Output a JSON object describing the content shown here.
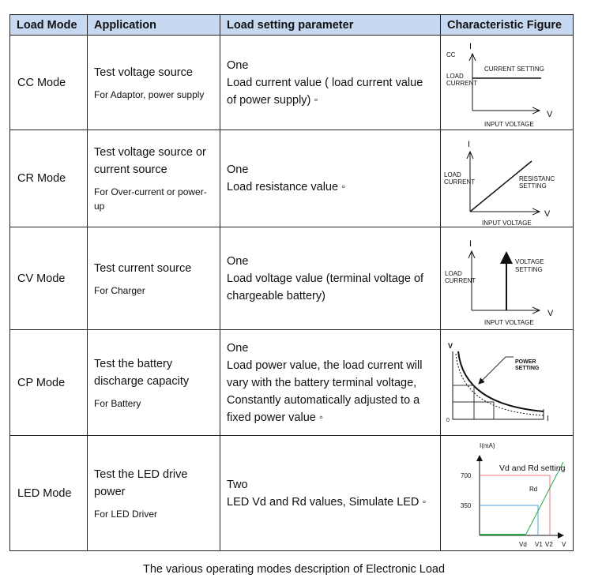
{
  "headers": [
    "Load Mode",
    "Application",
    "Load setting parameter",
    "Characteristic Figure"
  ],
  "rows": [
    {
      "mode": "CC Mode",
      "app": "Test voltage source",
      "app_sub": "For Adaptor, power supply",
      "param": [
        "One",
        "Load current value ( load current value of power supply) ◦"
      ]
    },
    {
      "mode": "CR Mode",
      "app": "Test voltage source or current source",
      "app_sub": "For Over-current or power-up",
      "param": [
        "One",
        "Load resistance value ◦"
      ]
    },
    {
      "mode": "CV Mode",
      "app": "Test current source",
      "app_sub": "For Charger",
      "param": [
        "One",
        "Load voltage value (terminal voltage of chargeable battery)"
      ]
    },
    {
      "mode": "CP Mode",
      "app": "Test the battery discharge capacity",
      "app_sub": "For Battery",
      "param": [
        "One",
        "Load power value, the load current will vary with the battery terminal voltage, Constantly automatically adjusted to a fixed power value ◦"
      ]
    },
    {
      "mode": "LED Mode",
      "app": "Test the LED drive power",
      "app_sub": "For LED Driver",
      "param": [
        "Two",
        "LED Vd and Rd values, Simulate LED ◦"
      ]
    }
  ],
  "figures": {
    "cc": {
      "title": "CC",
      "y": "I",
      "x": "V",
      "setting": "CURRENT SETTING",
      "load1": "LOAD",
      "load2": "CURRENT",
      "xlabel": "INPUT VOLTAGE"
    },
    "cr": {
      "y": "I",
      "x": "V",
      "setting1": "RESISTANC",
      "setting2": "SETTING",
      "load1": "LOAD",
      "load2": "CURRENT",
      "xlabel": "INPUT VOLTAGE"
    },
    "cv": {
      "y": "I",
      "x": "V",
      "setting1": "VOLTAGE",
      "setting2": "SETTING",
      "load1": "LOAD",
      "load2": "CURRENT",
      "xlabel": "INPUT VOLTAGE"
    },
    "cp": {
      "y": "V",
      "x": "I",
      "origin": "0",
      "setting1": "POWER",
      "setting2": "SETTING"
    },
    "led": {
      "y": "I(mA)",
      "x": "V",
      "t700": "700",
      "t350": "350",
      "title": "Vd and Rd setting",
      "rd": "Rd",
      "vd": "Vd",
      "v1": "V1",
      "v2": "V2"
    }
  },
  "colors": {
    "header_bg": "#c6d9f0",
    "red": "#e8787a",
    "blue": "#4aa8e0",
    "green": "#2aa84a"
  },
  "caption": "The various operating modes description of Electronic Load"
}
